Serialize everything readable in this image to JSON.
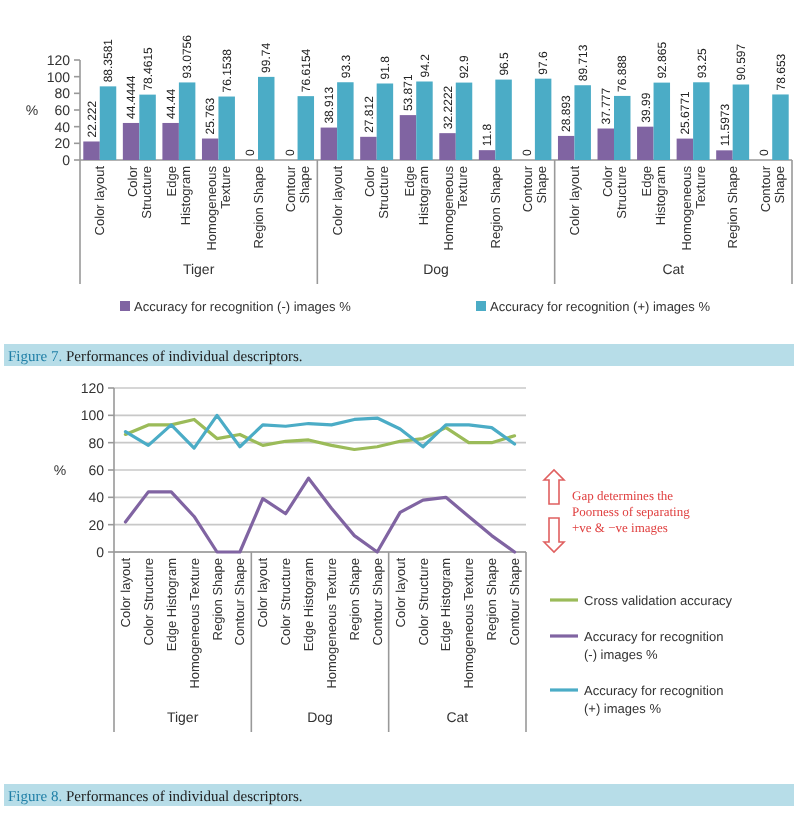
{
  "chart_data": [
    {
      "type": "bar",
      "ylabel": "%",
      "categories": [
        "Color layout",
        "Color Structure",
        "Edge Histogram",
        "Homogeneous Texture",
        "Region Shape",
        "Contour Shape",
        "Color layout",
        "Color Structure",
        "Edge Histogram",
        "Homogeneous Texture",
        "Region Shape",
        "Contour Shape",
        "Color layout",
        "Color Structure",
        "Edge Histogram",
        "Homogeneous Texture",
        "Region Shape",
        "Contour Shape"
      ],
      "series": [
        {
          "name": "Accuracy for recognition (-) images %",
          "color": "#8064a2",
          "values": [
            22.222,
            44.4444,
            44.44,
            25.763,
            0,
            0,
            38.913,
            27.812,
            53.871,
            32.2222,
            11.8,
            0,
            28.893,
            37.777,
            39.99,
            25.6771,
            11.5973,
            0
          ]
        },
        {
          "name": "Accuracy for recognition (+) images %",
          "color": "#4bacc6",
          "values": [
            88.3581,
            78.4615,
            93.0756,
            76.1538,
            99.74,
            76.6154,
            93.3,
            91.8,
            94.2,
            92.9,
            96.5,
            97.6,
            89.713,
            76.888,
            92.865,
            93.25,
            90.597,
            78.653
          ]
        }
      ],
      "ylim": [
        0,
        120
      ],
      "yticks": [
        0,
        20,
        40,
        60,
        80,
        100,
        120
      ],
      "data_labels": true,
      "legend": "bottom",
      "annotations": [
        "Tiger",
        "Dog",
        "Cat",
        "Figure 7. Performances of individual descriptors."
      ]
    },
    {
      "type": "line",
      "ylabel": "%",
      "categories": [
        "Color layout",
        "Color Structure",
        "Edge Histogram",
        "Homogeneous Texture",
        "Region Shape",
        "Contour Shape",
        "Color layout",
        "Color Structure",
        "Edge Histogram",
        "Homogeneous Texture",
        "Region Shape",
        "Contour Shape",
        "Color layout",
        "Color Structure",
        "Edge Histogram",
        "Homogeneous Texture",
        "Region Shape",
        "Contour Shape"
      ],
      "series": [
        {
          "name": "Cross validation  accuracy",
          "color": "#9bbb59",
          "values": [
            86,
            93,
            93,
            97,
            83,
            86,
            78,
            81,
            82,
            78,
            75,
            77,
            81,
            83,
            91,
            80,
            80,
            85
          ]
        },
        {
          "name": "Accuracy for recognition (-) images %",
          "color": "#8064a2",
          "values": [
            22,
            44,
            44,
            26,
            0,
            0,
            39,
            28,
            54,
            32,
            12,
            0,
            29,
            38,
            40,
            26,
            12,
            0
          ]
        },
        {
          "name": "Accuracy for recognition (+) images %",
          "color": "#4bacc6",
          "values": [
            88,
            78,
            93,
            76,
            100,
            77,
            93,
            92,
            94,
            93,
            97,
            98,
            90,
            77,
            93,
            93,
            91,
            79
          ]
        }
      ],
      "ylim": [
        0,
        120
      ],
      "yticks": [
        0,
        20,
        40,
        60,
        80,
        100,
        120
      ],
      "grid": "y",
      "legend": "right",
      "annotations": [
        "Tiger",
        "Dog",
        "Cat",
        "Gap determines the\nPoorness of separating\n+ve & −ve images",
        "Figure 8. Performances of individual descriptors."
      ]
    }
  ]
}
